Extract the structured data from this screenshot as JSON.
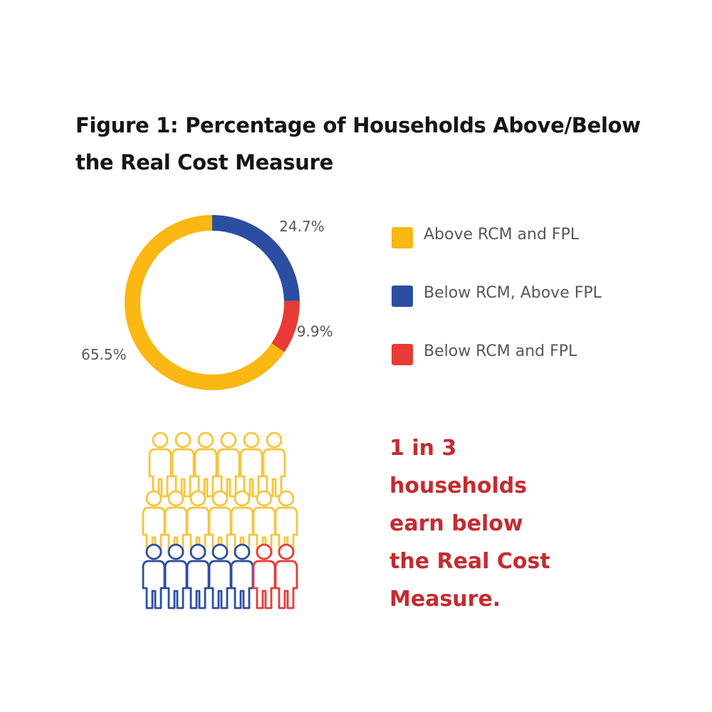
{
  "title": {
    "line1": "Figure 1: Percentage of Households Above/Below",
    "line2": "the Real Cost Measure"
  },
  "chart_data": {
    "type": "pie",
    "title": "Figure 1: Percentage of Households Above/Below the Real Cost Measure",
    "donut": true,
    "legend_position": "right",
    "categories": [
      "Above RCM and FPL",
      "Below RCM, Above FPL",
      "Below RCM and FPL"
    ],
    "values": [
      65.5,
      24.7,
      9.9
    ],
    "data_labels": [
      "65.5%",
      "24.7%",
      "9.9%"
    ],
    "colors": [
      "#fbb712",
      "#2b4ea2",
      "#e83b35"
    ]
  },
  "callout": {
    "lines": [
      "1 in 3",
      "households",
      "earn below",
      "the Real Cost",
      "Measure."
    ]
  },
  "pictogram": {
    "rows": [
      [
        "#f7c43c",
        "#f7c43c",
        "#f7c43c",
        "#f7c43c",
        "#f7c43c",
        "#f7c43c"
      ],
      [
        "#f7c43c",
        "#f7c43c",
        "#f7c43c",
        "#f7c43c",
        "#f7c43c",
        "#f7c43c",
        "#f7c43c"
      ],
      [
        "#2b4ea2",
        "#2b4ea2",
        "#2b4ea2",
        "#2b4ea2",
        "#2b4ea2",
        "#e83b35",
        "#e83b35"
      ]
    ]
  },
  "colors": {
    "title": "#151515",
    "label_text": "#585858",
    "callout_text": "#c52b30"
  }
}
